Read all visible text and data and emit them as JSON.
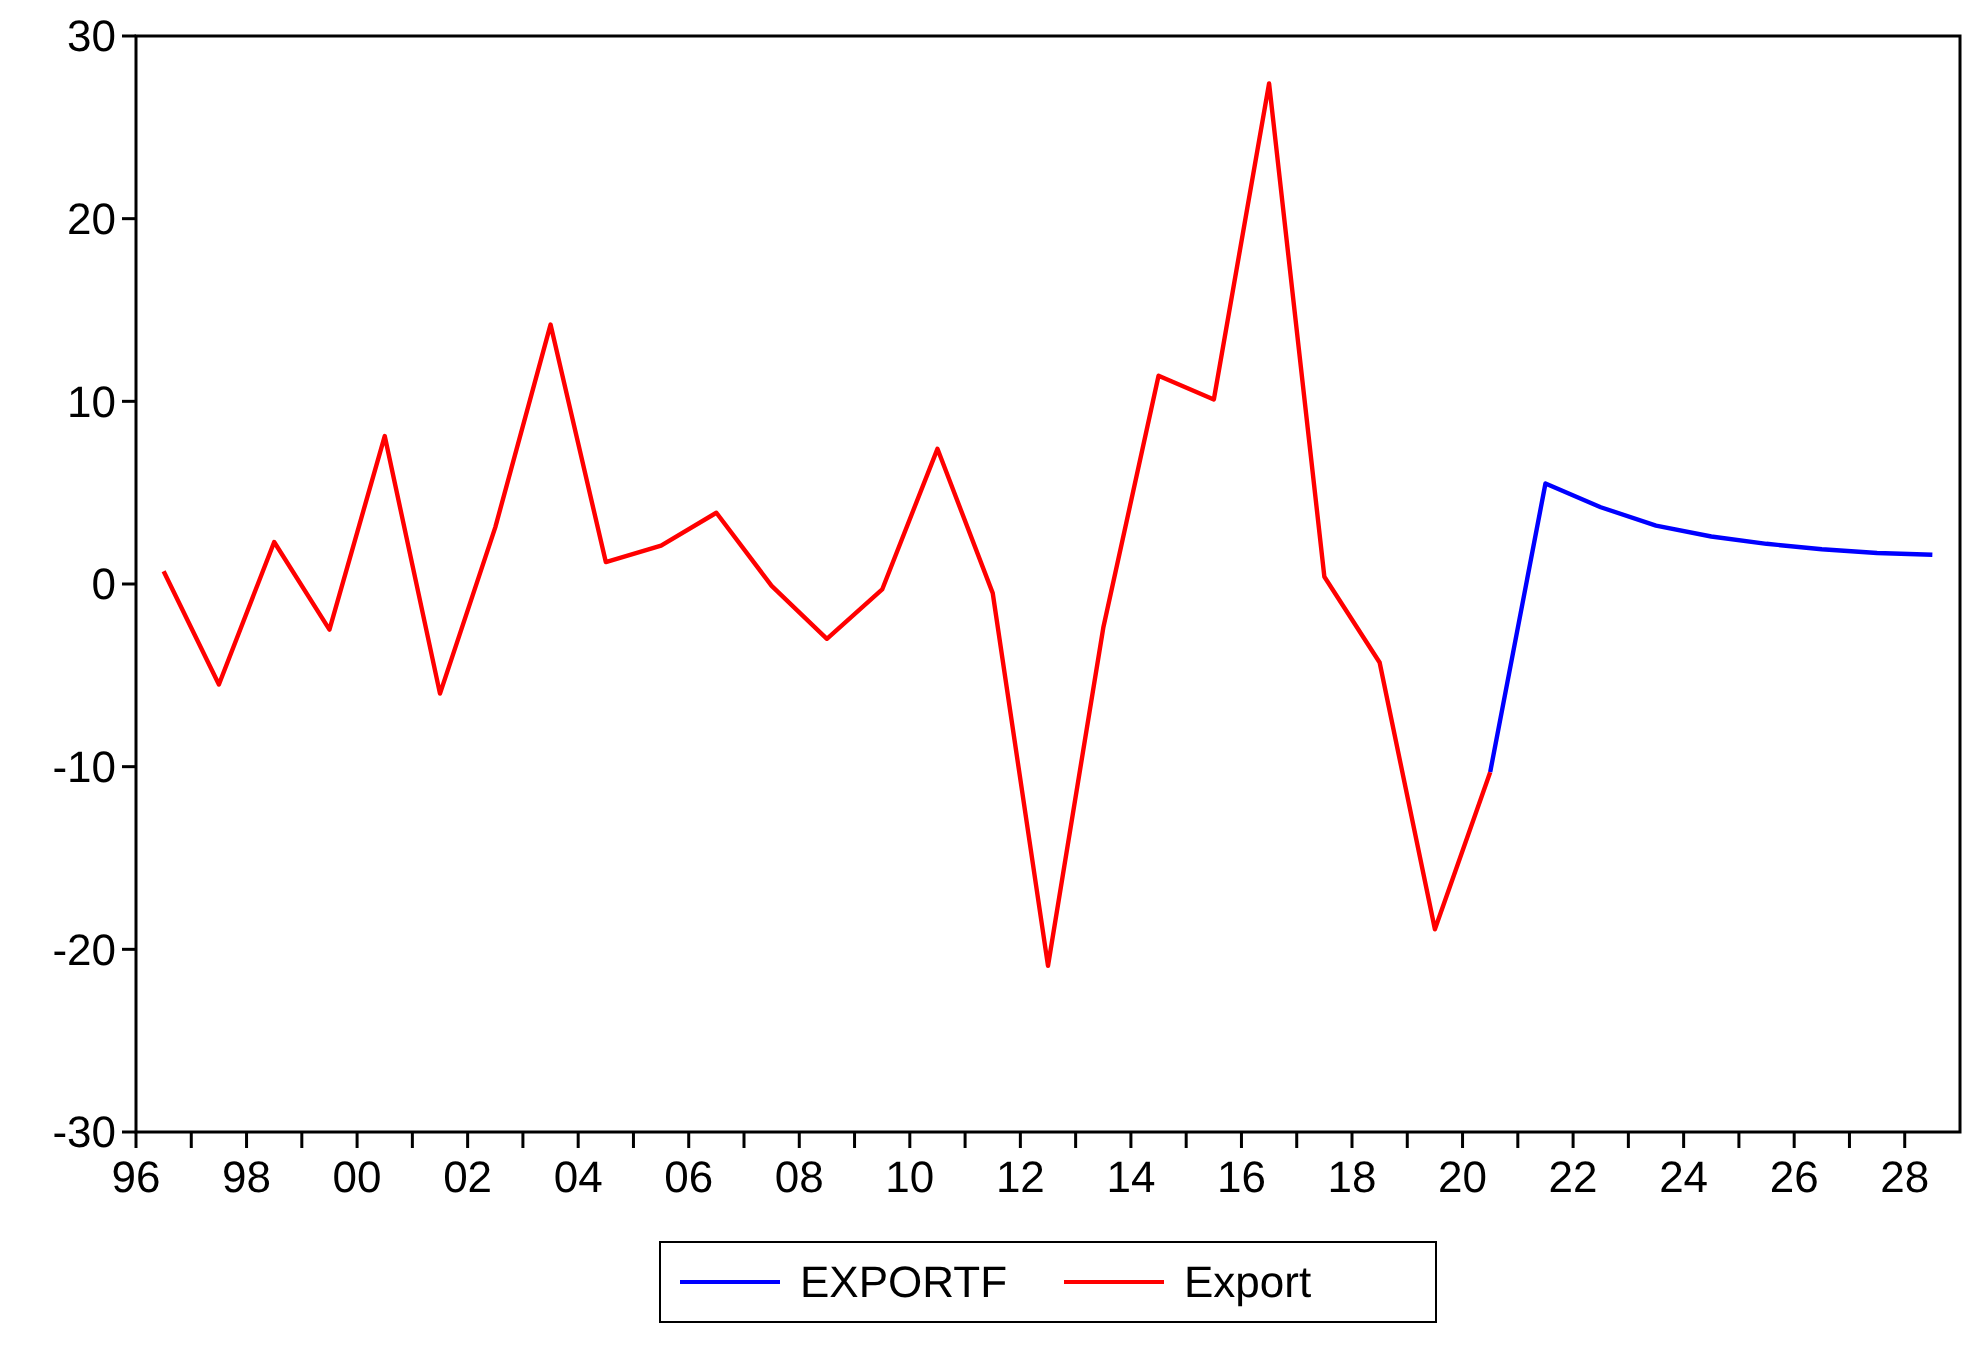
{
  "chart_data": {
    "type": "line",
    "xlim": [
      1996,
      2029
    ],
    "ylim": [
      -30,
      30
    ],
    "yticks": [
      -30,
      -20,
      -10,
      0,
      10,
      20,
      30
    ],
    "xticks": [
      {
        "value": 1996,
        "label": "96"
      },
      {
        "value": 1997,
        "label": null
      },
      {
        "value": 1998,
        "label": "98"
      },
      {
        "value": 1999,
        "label": null
      },
      {
        "value": 2000,
        "label": "00"
      },
      {
        "value": 2001,
        "label": null
      },
      {
        "value": 2002,
        "label": "02"
      },
      {
        "value": 2003,
        "label": null
      },
      {
        "value": 2004,
        "label": "04"
      },
      {
        "value": 2005,
        "label": null
      },
      {
        "value": 2006,
        "label": "06"
      },
      {
        "value": 2007,
        "label": null
      },
      {
        "value": 2008,
        "label": "08"
      },
      {
        "value": 2009,
        "label": null
      },
      {
        "value": 2010,
        "label": "10"
      },
      {
        "value": 2011,
        "label": null
      },
      {
        "value": 2012,
        "label": "12"
      },
      {
        "value": 2013,
        "label": null
      },
      {
        "value": 2014,
        "label": "14"
      },
      {
        "value": 2015,
        "label": null
      },
      {
        "value": 2016,
        "label": "16"
      },
      {
        "value": 2017,
        "label": null
      },
      {
        "value": 2018,
        "label": "18"
      },
      {
        "value": 2019,
        "label": null
      },
      {
        "value": 2020,
        "label": "20"
      },
      {
        "value": 2021,
        "label": null
      },
      {
        "value": 2022,
        "label": "22"
      },
      {
        "value": 2023,
        "label": null
      },
      {
        "value": 2024,
        "label": "24"
      },
      {
        "value": 2025,
        "label": null
      },
      {
        "value": 2026,
        "label": "26"
      },
      {
        "value": 2027,
        "label": null
      },
      {
        "value": 2028,
        "label": "28"
      }
    ],
    "grid": false,
    "legend": "bottom",
    "marker": "none",
    "line_style": "solid",
    "series": [
      {
        "name": "EXPORTF",
        "color": "#0000ff",
        "x": [
          2020.5,
          2021.5,
          2022.5,
          2023.5,
          2024.5,
          2025.5,
          2026.5,
          2027.5,
          2028.5
        ],
        "values": [
          -10.3,
          5.5,
          4.2,
          3.2,
          2.6,
          2.2,
          1.9,
          1.7,
          1.6
        ]
      },
      {
        "name": "Export",
        "color": "#ff0000",
        "x": [
          1996.5,
          1997.5,
          1998.5,
          1999.5,
          2000.5,
          2001.5,
          2002.5,
          2003.5,
          2004.5,
          2005.5,
          2006.5,
          2007.5,
          2008.5,
          2009.5,
          2010.5,
          2011.5,
          2012.5,
          2013.5,
          2014.5,
          2015.5,
          2016.5,
          2017.5,
          2018.5,
          2019.5,
          2020.5
        ],
        "values": [
          0.7,
          -5.5,
          2.3,
          -2.5,
          8.1,
          -6.0,
          3.1,
          14.2,
          1.2,
          2.1,
          3.9,
          -0.1,
          -3.0,
          -0.3,
          7.4,
          -0.5,
          -20.9,
          -2.4,
          11.4,
          10.1,
          27.4,
          0.4,
          -4.3,
          -18.9,
          -10.3
        ]
      }
    ]
  }
}
